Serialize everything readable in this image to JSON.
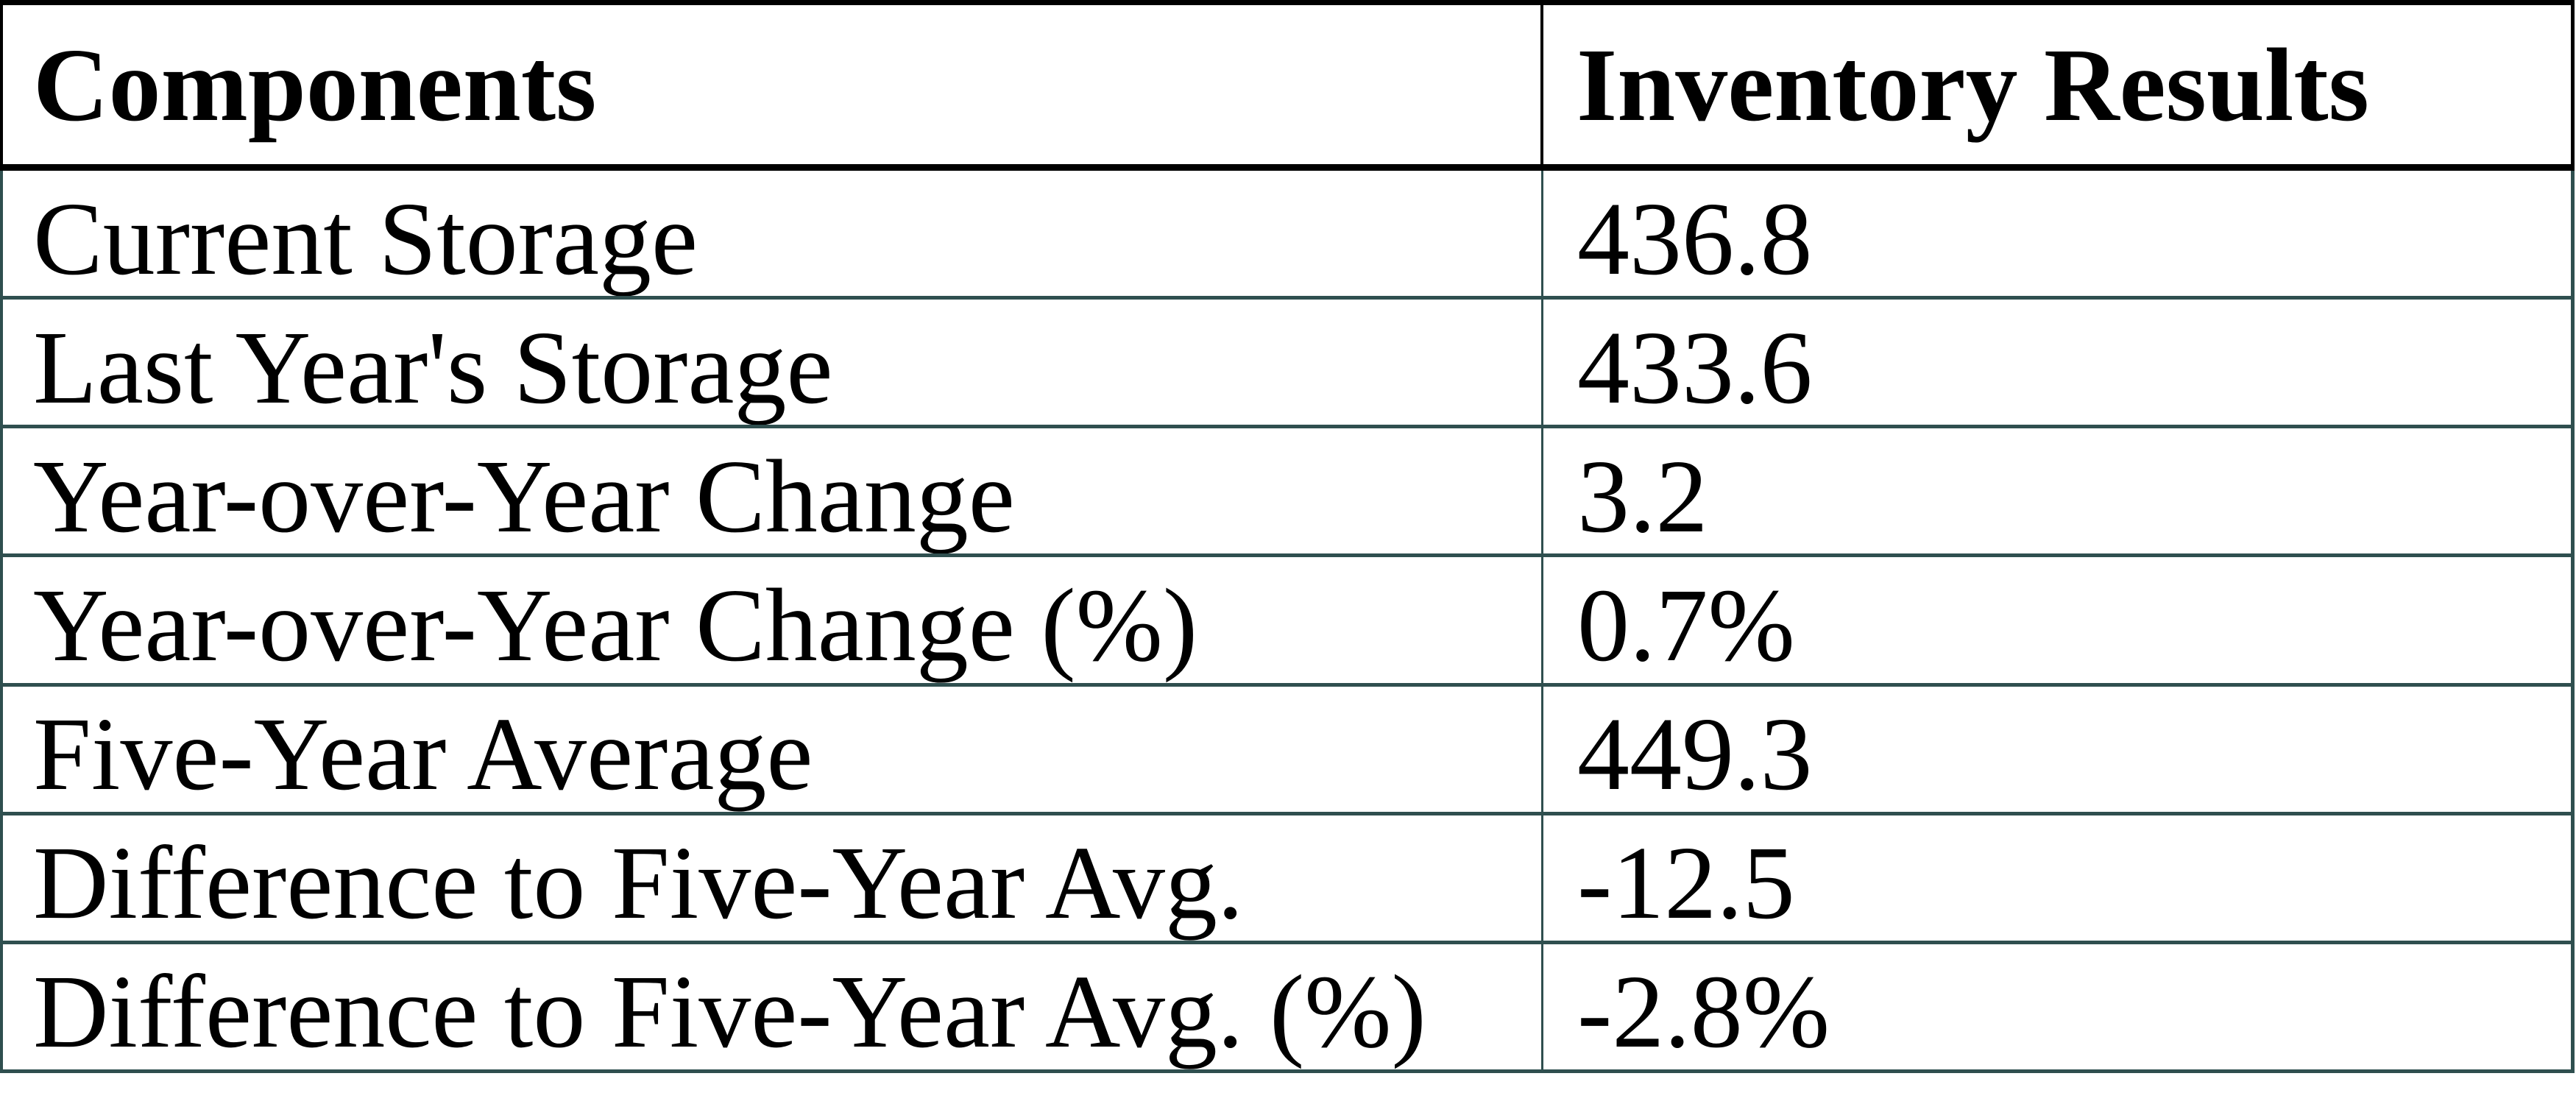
{
  "colors": {
    "outer_and_header_border": "#000000",
    "body_border": "#2F4F4F",
    "text": "#000000",
    "background": "#FFFFFF"
  },
  "chart_data": {
    "type": "table",
    "title": "",
    "columns": [
      "Components",
      "Inventory Results"
    ],
    "rows": [
      [
        "Current Storage",
        "436.8"
      ],
      [
        "Last Year's Storage",
        "433.6"
      ],
      [
        "Year-over-Year Change",
        "3.2"
      ],
      [
        "Year-over-Year Change (%)",
        "0.7%"
      ],
      [
        "Five-Year Average",
        "449.3"
      ],
      [
        "Difference to Five-Year Avg.",
        "-12.5"
      ],
      [
        "Difference to Five-Year Avg. (%)",
        "-2.8%"
      ]
    ]
  }
}
